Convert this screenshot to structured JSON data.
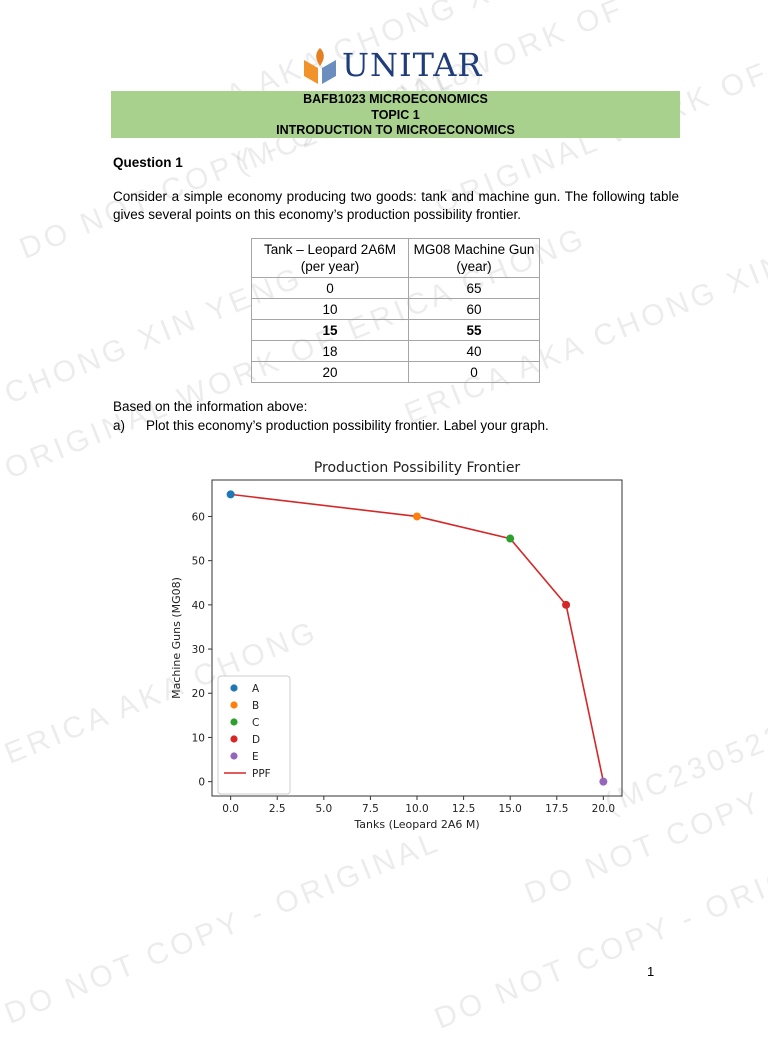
{
  "watermarks": [
    "ERICA AKA CHONG XIN YENG",
    "(MC230522118)",
    "ORIGINAL WORK OF ERICA CHONG",
    "DO NOT COPY - ORIGINAL WORK OF",
    "CHONG XIN YENG",
    "DO NOT COPY - ORIGINAL",
    "ERICA AKA CHONG",
    "DO NOT COPY - ORIGINAL WORK OF ERICA"
  ],
  "logo": {
    "text": "UNITAR",
    "icon": "book-flame-logo-icon"
  },
  "header": {
    "course": "BAFB1023 MICROECONOMICS",
    "topic": "TOPIC 1",
    "title": "INTRODUCTION TO MICROECONOMICS"
  },
  "question": {
    "title": "Question 1",
    "text": "Consider a simple economy producing two goods: tank and machine gun. The following table gives several points on this economy’s production possibility frontier."
  },
  "table": {
    "headers": [
      "Tank – Leopard 2A6M (per year)",
      "MG08 Machine Gun (year)"
    ],
    "rows": [
      [
        "0",
        "65"
      ],
      [
        "10",
        "60"
      ],
      [
        "15",
        "55"
      ],
      [
        "18",
        "40"
      ],
      [
        "20",
        "0"
      ]
    ],
    "bold_row_index": 2
  },
  "based_on": "Based on the information above:",
  "part_a": {
    "label": "a)",
    "text": "Plot this economy’s production possibility frontier. Label your graph."
  },
  "chart_data": {
    "type": "line",
    "title": "Production Possibility Frontier",
    "xlabel": "Tanks (Leopard 2A6 M)",
    "ylabel": "Machine Guns (MG08)",
    "xlim": [
      -1,
      21
    ],
    "ylim": [
      -3.25,
      68.25
    ],
    "xticks": [
      "0.0",
      "2.5",
      "5.0",
      "7.5",
      "10.0",
      "12.5",
      "15.0",
      "17.5",
      "20.0"
    ],
    "yticks": [
      "0",
      "10",
      "20",
      "30",
      "40",
      "50",
      "60"
    ],
    "points": [
      {
        "name": "A",
        "x": 0,
        "y": 65,
        "color": "#1f77b4"
      },
      {
        "name": "B",
        "x": 10,
        "y": 60,
        "color": "#ff7f0e"
      },
      {
        "name": "C",
        "x": 15,
        "y": 55,
        "color": "#2ca02c"
      },
      {
        "name": "D",
        "x": 18,
        "y": 40,
        "color": "#d62728"
      },
      {
        "name": "E",
        "x": 20,
        "y": 0,
        "color": "#9467bd"
      }
    ],
    "line": {
      "name": "PPF",
      "color": "#d62728"
    },
    "legend_position": "lower-left",
    "grid": false
  },
  "page_number": "1"
}
